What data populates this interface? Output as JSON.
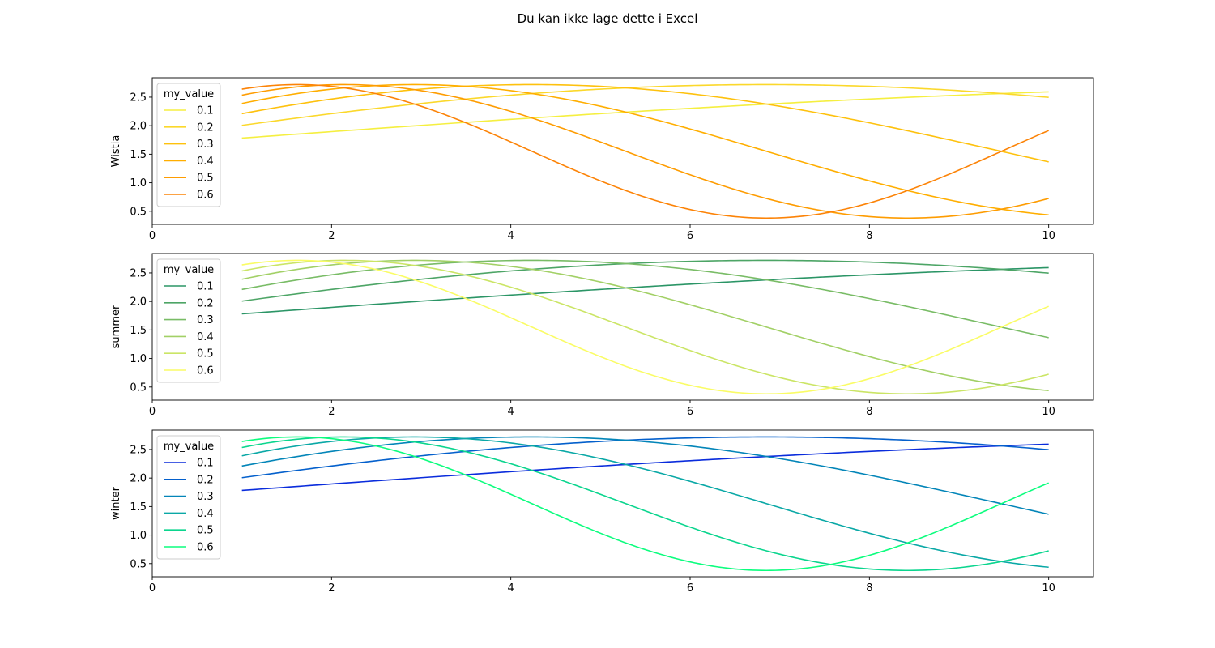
{
  "figure": {
    "suptitle": "Du kan ikke lage dette i Excel"
  },
  "chart_data": [
    {
      "type": "line",
      "ylabel": "Wistia",
      "xlim": [
        0,
        10.5
      ],
      "ylim": [
        0.27,
        2.84
      ],
      "xticks": [
        "0",
        "2",
        "4",
        "6",
        "8",
        "10"
      ],
      "yticks": [
        "0.5",
        "1.0",
        "1.5",
        "2.0",
        "2.5"
      ],
      "grid": false,
      "legend": {
        "title": "my_value",
        "placement": "upper-left"
      },
      "series": [
        {
          "name": "0.1",
          "color": "#f5ef40",
          "a": 0.1
        },
        {
          "name": "0.2",
          "color": "#fbd82b",
          "a": 0.2
        },
        {
          "name": "0.3",
          "color": "#fec10d",
          "a": 0.3
        },
        {
          "name": "0.4",
          "color": "#ffae00",
          "a": 0.4
        },
        {
          "name": "0.5",
          "color": "#fe9c01",
          "a": 0.5
        },
        {
          "name": "0.6",
          "color": "#fc8307",
          "a": 0.6
        }
      ]
    },
    {
      "type": "line",
      "ylabel": "summer",
      "xlim": [
        0,
        10.5
      ],
      "ylim": [
        0.27,
        2.84
      ],
      "xticks": [
        "0",
        "2",
        "4",
        "6",
        "8",
        "10"
      ],
      "yticks": [
        "0.5",
        "1.0",
        "1.5",
        "2.0",
        "2.5"
      ],
      "grid": false,
      "legend": {
        "title": "my_value",
        "placement": "upper-left"
      },
      "series": [
        {
          "name": "0.1",
          "color": "#2b9566",
          "a": 0.1
        },
        {
          "name": "0.2",
          "color": "#4da566",
          "a": 0.2
        },
        {
          "name": "0.3",
          "color": "#79bc66",
          "a": 0.3
        },
        {
          "name": "0.4",
          "color": "#a2d066",
          "a": 0.4
        },
        {
          "name": "0.5",
          "color": "#cbe566",
          "a": 0.5
        },
        {
          "name": "0.6",
          "color": "#fafc66",
          "a": 0.6
        }
      ]
    },
    {
      "type": "line",
      "ylabel": "winter",
      "xlim": [
        0,
        10.5
      ],
      "ylim": [
        0.27,
        2.84
      ],
      "xticks": [
        "0",
        "2",
        "4",
        "6",
        "8",
        "10"
      ],
      "yticks": [
        "0.5",
        "1.0",
        "1.5",
        "2.0",
        "2.5"
      ],
      "grid": false,
      "legend": {
        "title": "my_value",
        "placement": "upper-left"
      },
      "series": [
        {
          "name": "0.1",
          "color": "#0a2cdc",
          "a": 0.1
        },
        {
          "name": "0.2",
          "color": "#0460cc",
          "a": 0.2
        },
        {
          "name": "0.3",
          "color": "#0385b8",
          "a": 0.3
        },
        {
          "name": "0.4",
          "color": "#0aa8a6",
          "a": 0.4
        },
        {
          "name": "0.5",
          "color": "#0bd58e",
          "a": 0.5
        },
        {
          "name": "0.6",
          "color": "#0cfd7e",
          "a": 0.6
        }
      ]
    }
  ]
}
